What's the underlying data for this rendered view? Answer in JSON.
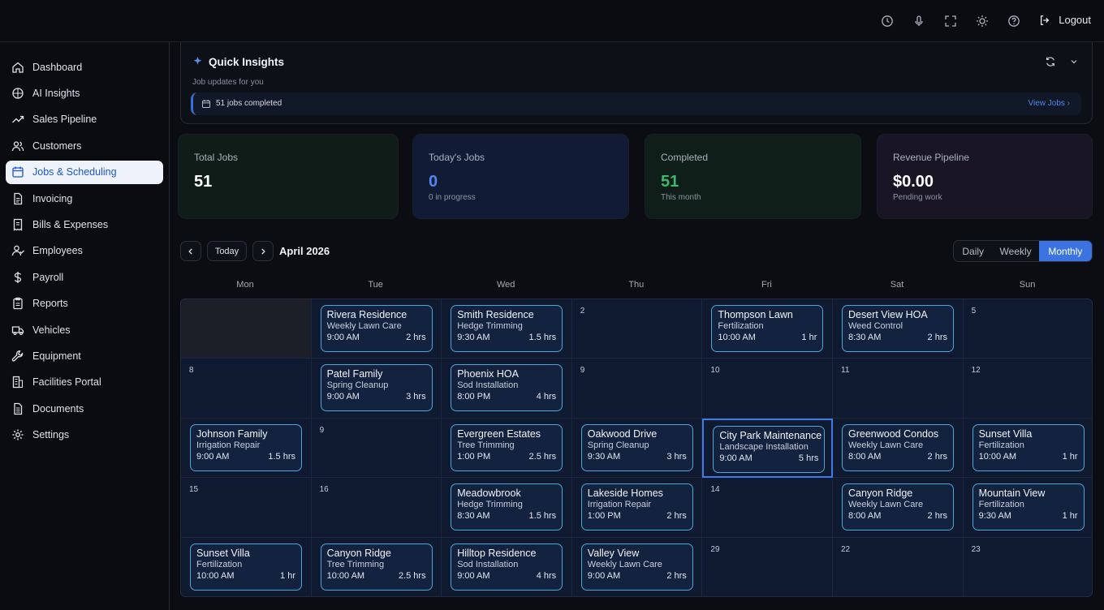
{
  "topbar": {
    "logout_label": "Logout"
  },
  "sidebar": {
    "items": [
      {
        "label": "Dashboard",
        "icon": "home-icon"
      },
      {
        "label": "AI Insights",
        "icon": "brain-icon"
      },
      {
        "label": "Sales Pipeline",
        "icon": "trend-icon"
      },
      {
        "label": "Customers",
        "icon": "users-icon"
      },
      {
        "label": "Jobs & Scheduling",
        "icon": "calendar-icon",
        "active": true
      },
      {
        "label": "Invoicing",
        "icon": "document-icon"
      },
      {
        "label": "Bills & Expenses",
        "icon": "receipt-icon"
      },
      {
        "label": "Employees",
        "icon": "user-check-icon"
      },
      {
        "label": "Payroll",
        "icon": "dollar-icon"
      },
      {
        "label": "Reports",
        "icon": "clipboard-icon"
      },
      {
        "label": "Vehicles",
        "icon": "truck-icon"
      },
      {
        "label": "Equipment",
        "icon": "wrench-icon"
      },
      {
        "label": "Facilities Portal",
        "icon": "building-icon"
      },
      {
        "label": "Documents",
        "icon": "file-icon"
      },
      {
        "label": "Settings",
        "icon": "gear-icon"
      }
    ]
  },
  "insights": {
    "title": "Quick Insights",
    "subtitle": "Job updates for you",
    "row_text": "51 jobs completed",
    "view_link": "View Jobs"
  },
  "stats": [
    {
      "label": "Total Jobs",
      "value": "51",
      "note": "",
      "color": "#ffffff"
    },
    {
      "label": "Today's Jobs",
      "value": "0",
      "note": "0 in progress",
      "color": "#4f86f0"
    },
    {
      "label": "Completed",
      "value": "51",
      "note": "This month",
      "color": "#3fb76b"
    },
    {
      "label": "Revenue Pipeline",
      "value": "$0.00",
      "note": "Pending work",
      "color": "#ffffff"
    }
  ],
  "calendar": {
    "today_label": "Today",
    "month_label": "April 2026",
    "views": [
      "Daily",
      "Weekly",
      "Monthly"
    ],
    "active_view": "Monthly",
    "days": [
      "Mon",
      "Tue",
      "Wed",
      "Thu",
      "Fri",
      "Sat",
      "Sun"
    ],
    "weeks": [
      [
        {
          "day": "",
          "muted": true
        },
        {
          "day": "",
          "job": {
            "name": "Rivera Residence",
            "type": "Weekly Lawn Care",
            "time": "9:00 AM",
            "dur": "2 hrs"
          }
        },
        {
          "day": "",
          "job": {
            "name": "Smith Residence",
            "type": "Hedge Trimming",
            "time": "9:30 AM",
            "dur": "1.5 hrs"
          }
        },
        {
          "day": "2"
        },
        {
          "day": "",
          "job": {
            "name": "Thompson Lawn",
            "type": "Fertilization",
            "time": "10:00 AM",
            "dur": "1 hr"
          }
        },
        {
          "day": "",
          "job": {
            "name": "Desert View HOA",
            "type": "Weed Control",
            "time": "8:30 AM",
            "dur": "2 hrs"
          }
        },
        {
          "day": "5"
        }
      ],
      [
        {
          "day": "8"
        },
        {
          "day": "",
          "job": {
            "name": "Patel Family",
            "type": "Spring Cleanup",
            "time": "9:00 AM",
            "dur": "3 hrs"
          }
        },
        {
          "day": "",
          "job": {
            "name": "Phoenix HOA",
            "type": "Sod Installation",
            "time": "8:00 PM",
            "dur": "4 hrs"
          }
        },
        {
          "day": "9"
        },
        {
          "day": "10"
        },
        {
          "day": "11"
        },
        {
          "day": "12"
        }
      ],
      [
        {
          "day": "",
          "job": {
            "name": "Johnson Family",
            "type": "Irrigation Repair",
            "time": "9:00 AM",
            "dur": "1.5 hrs"
          }
        },
        {
          "day": "9"
        },
        {
          "day": "",
          "job": {
            "name": "Evergreen Estates",
            "type": "Tree Trimming",
            "time": "1:00 PM",
            "dur": "2.5 hrs"
          }
        },
        {
          "day": "",
          "job": {
            "name": "Oakwood Drive",
            "type": "Spring Cleanup",
            "time": "9:30 AM",
            "dur": "3 hrs"
          }
        },
        {
          "day": "",
          "selected": true,
          "job": {
            "name": "City Park Maintenance",
            "type": "Landscape Installation",
            "time": "9:00 AM",
            "dur": "5 hrs"
          }
        },
        {
          "day": "",
          "job": {
            "name": "Greenwood Condos",
            "type": "Weekly Lawn Care",
            "time": "8:00 AM",
            "dur": "2 hrs"
          }
        },
        {
          "day": "",
          "job": {
            "name": "Sunset Villa",
            "type": "Fertilization",
            "time": "10:00 AM",
            "dur": "1 hr"
          }
        }
      ],
      [
        {
          "day": "15"
        },
        {
          "day": "16"
        },
        {
          "day": "",
          "job": {
            "name": "Meadowbrook",
            "type": "Hedge Trimming",
            "time": "8:30 AM",
            "dur": "1.5 hrs"
          }
        },
        {
          "day": "",
          "job": {
            "name": "Lakeside Homes",
            "type": "Irrigation Repair",
            "time": "1:00 PM",
            "dur": "2 hrs"
          }
        },
        {
          "day": "14"
        },
        {
          "day": "",
          "job": {
            "name": "Canyon Ridge",
            "type": "Weekly Lawn Care",
            "time": "8:00 AM",
            "dur": "2 hrs"
          }
        },
        {
          "day": "",
          "job": {
            "name": "Mountain View",
            "type": "Fertilization",
            "time": "9:30 AM",
            "dur": "1 hr"
          }
        }
      ],
      [
        {
          "day": "",
          "job": {
            "name": "Sunset Villa",
            "type": "Fertilization",
            "time": "10:00 AM",
            "dur": "1 hr"
          }
        },
        {
          "day": "",
          "job": {
            "name": "Canyon Ridge",
            "type": "Tree Trimming",
            "time": "10:00 AM",
            "dur": "2.5 hrs"
          }
        },
        {
          "day": "",
          "job": {
            "name": "Hilltop Residence",
            "type": "Sod Installation",
            "time": "9:00 AM",
            "dur": "4 hrs"
          }
        },
        {
          "day": "",
          "job": {
            "name": "Valley View",
            "type": "Weekly Lawn Care",
            "time": "9:00 AM",
            "dur": "2 hrs"
          }
        },
        {
          "day": "29"
        },
        {
          "day": "22"
        },
        {
          "day": "23"
        }
      ]
    ]
  }
}
